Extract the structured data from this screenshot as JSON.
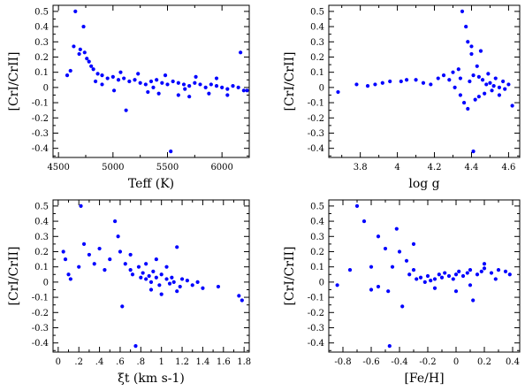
{
  "figure": {
    "point_color": "#0000ff",
    "axis_color": "#000000",
    "background": "#ffffff"
  },
  "chart_data": [
    {
      "type": "scatter",
      "panel": "top-left",
      "xlabel": "Teff (K)",
      "ylabel": "[CrI/CrII]",
      "xlim": [
        4450,
        6250
      ],
      "ylim": [
        -0.46,
        0.54
      ],
      "xticks": [
        4500,
        5000,
        5500,
        6000
      ],
      "xtick_labels": [
        "4500",
        "5000",
        "5500",
        "6000"
      ],
      "yticks": [
        -0.4,
        -0.3,
        -0.2,
        -0.1,
        0,
        0.1,
        0.2,
        0.3,
        0.4,
        0.5
      ],
      "ytick_labels": [
        "-0.4",
        "-0.3",
        "-0.2",
        "-0.1",
        "0",
        "0.1",
        "0.2",
        "0.3",
        "0.4",
        "0.5"
      ],
      "points": [
        [
          4655,
          0.5
        ],
        [
          4730,
          0.4
        ],
        [
          4640,
          0.27
        ],
        [
          4700,
          0.25
        ],
        [
          4690,
          0.22
        ],
        [
          4740,
          0.23
        ],
        [
          4760,
          0.19
        ],
        [
          4780,
          0.17
        ],
        [
          4800,
          0.14
        ],
        [
          4820,
          0.12
        ],
        [
          4580,
          0.08
        ],
        [
          4610,
          0.11
        ],
        [
          4860,
          0.09
        ],
        [
          4900,
          0.08
        ],
        [
          4950,
          0.06
        ],
        [
          5000,
          0.07
        ],
        [
          5050,
          0.05
        ],
        [
          5100,
          0.06
        ],
        [
          5150,
          0.04
        ],
        [
          5200,
          0.05
        ],
        [
          5250,
          0.03
        ],
        [
          5300,
          0.02
        ],
        [
          5350,
          0.04
        ],
        [
          5400,
          0.05
        ],
        [
          5450,
          0.03
        ],
        [
          5500,
          0.02
        ],
        [
          5550,
          0.04
        ],
        [
          5600,
          0.03
        ],
        [
          5650,
          0.02
        ],
        [
          5700,
          0.01
        ],
        [
          5750,
          0.03
        ],
        [
          5800,
          0.02
        ],
        [
          5850,
          0.0
        ],
        [
          5900,
          0.02
        ],
        [
          5950,
          0.01
        ],
        [
          6000,
          0.0
        ],
        [
          6050,
          -0.01
        ],
        [
          6100,
          0.01
        ],
        [
          6150,
          0.0
        ],
        [
          6200,
          -0.02
        ],
        [
          6170,
          0.23
        ],
        [
          5120,
          -0.15
        ],
        [
          5530,
          -0.42
        ],
        [
          4900,
          0.02
        ],
        [
          5010,
          -0.02
        ],
        [
          5320,
          -0.03
        ],
        [
          5420,
          -0.04
        ],
        [
          5600,
          -0.05
        ],
        [
          5700,
          -0.06
        ],
        [
          5880,
          -0.04
        ],
        [
          6050,
          -0.05
        ],
        [
          6230,
          -0.02
        ],
        [
          5230,
          0.09
        ],
        [
          5480,
          0.08
        ],
        [
          5760,
          0.07
        ],
        [
          5950,
          0.06
        ],
        [
          4840,
          0.04
        ],
        [
          5070,
          0.1
        ],
        [
          5370,
          0.0
        ],
        [
          5660,
          -0.01
        ]
      ]
    },
    {
      "type": "scatter",
      "panel": "top-right",
      "xlabel": "log g",
      "ylabel": "[CrI/CrII]",
      "xlim": [
        3.63,
        4.66
      ],
      "ylim": [
        -0.46,
        0.54
      ],
      "xticks": [
        3.8,
        4.0,
        4.2,
        4.4,
        4.6
      ],
      "xtick_labels": [
        "3.8",
        "4",
        "4.2",
        "4.4",
        "4.6"
      ],
      "yticks": [
        -0.4,
        -0.3,
        -0.2,
        -0.1,
        0,
        0.1,
        0.2,
        0.3,
        0.4,
        0.5
      ],
      "ytick_labels": [
        "-0.4",
        "-0.3",
        "-0.2",
        "-0.1",
        "0",
        "0.1",
        "0.2",
        "0.3",
        "0.4",
        "0.5"
      ],
      "points": [
        [
          3.68,
          -0.03
        ],
        [
          3.78,
          0.02
        ],
        [
          3.84,
          0.01
        ],
        [
          3.88,
          0.02
        ],
        [
          3.92,
          0.03
        ],
        [
          3.96,
          0.04
        ],
        [
          4.02,
          0.04
        ],
        [
          4.05,
          0.05
        ],
        [
          4.1,
          0.05
        ],
        [
          4.14,
          0.03
        ],
        [
          4.18,
          0.02
        ],
        [
          4.22,
          0.06
        ],
        [
          4.25,
          0.08
        ],
        [
          4.28,
          0.05
        ],
        [
          4.3,
          0.1
        ],
        [
          4.33,
          0.12
        ],
        [
          4.35,
          0.5
        ],
        [
          4.37,
          0.4
        ],
        [
          4.38,
          0.3
        ],
        [
          4.4,
          0.27
        ],
        [
          4.4,
          0.22
        ],
        [
          4.41,
          0.08
        ],
        [
          4.43,
          0.14
        ],
        [
          4.45,
          0.24
        ],
        [
          4.46,
          0.05
        ],
        [
          4.48,
          0.02
        ],
        [
          4.5,
          0.03
        ],
        [
          4.52,
          0.01
        ],
        [
          4.55,
          0.0
        ],
        [
          4.58,
          -0.01
        ],
        [
          4.62,
          -0.12
        ],
        [
          4.34,
          -0.05
        ],
        [
          4.36,
          -0.1
        ],
        [
          4.38,
          -0.14
        ],
        [
          4.42,
          -0.08
        ],
        [
          4.44,
          -0.06
        ],
        [
          4.47,
          -0.04
        ],
        [
          4.51,
          -0.02
        ],
        [
          4.55,
          -0.05
        ],
        [
          4.41,
          -0.42
        ],
        [
          4.34,
          0.06
        ],
        [
          4.39,
          0.04
        ],
        [
          4.44,
          0.07
        ],
        [
          4.49,
          0.09
        ],
        [
          4.53,
          0.06
        ],
        [
          4.57,
          0.04
        ],
        [
          4.6,
          0.02
        ],
        [
          4.31,
          0.0
        ]
      ]
    },
    {
      "type": "scatter",
      "panel": "bottom-left",
      "xlabel": "ξt (km s-1)",
      "ylabel": "[CrI/CrII]",
      "xlim": [
        -0.05,
        1.85
      ],
      "ylim": [
        -0.46,
        0.54
      ],
      "xticks": [
        0,
        0.2,
        0.4,
        0.6,
        0.8,
        1.0,
        1.2,
        1.4,
        1.6,
        1.8
      ],
      "xtick_labels": [
        "0",
        ".2",
        ".4",
        ".6",
        ".8",
        "1",
        "1.2",
        "1.4",
        "1.6",
        "1.8"
      ],
      "yticks": [
        -0.4,
        -0.3,
        -0.2,
        -0.1,
        0,
        0.1,
        0.2,
        0.3,
        0.4,
        0.5
      ],
      "ytick_labels": [
        "-0.4",
        "-0.3",
        "-0.2",
        "-0.1",
        "0",
        "0.1",
        "0.2",
        "0.3",
        "0.4",
        "0.5"
      ],
      "points": [
        [
          0.05,
          0.2
        ],
        [
          0.07,
          0.15
        ],
        [
          0.1,
          0.05
        ],
        [
          0.12,
          0.02
        ],
        [
          0.2,
          0.1
        ],
        [
          0.22,
          0.5
        ],
        [
          0.25,
          0.25
        ],
        [
          0.3,
          0.18
        ],
        [
          0.35,
          0.12
        ],
        [
          0.4,
          0.22
        ],
        [
          0.45,
          0.08
        ],
        [
          0.5,
          0.15
        ],
        [
          0.55,
          0.4
        ],
        [
          0.58,
          0.3
        ],
        [
          0.6,
          0.2
        ],
        [
          0.62,
          -0.16
        ],
        [
          0.65,
          0.12
        ],
        [
          0.7,
          0.08
        ],
        [
          0.72,
          0.05
        ],
        [
          0.75,
          -0.42
        ],
        [
          0.78,
          0.1
        ],
        [
          0.8,
          0.03
        ],
        [
          0.82,
          0.06
        ],
        [
          0.85,
          0.02
        ],
        [
          0.88,
          0.04
        ],
        [
          0.9,
          0.0
        ],
        [
          0.92,
          0.07
        ],
        [
          0.95,
          0.03
        ],
        [
          0.98,
          -0.02
        ],
        [
          1.0,
          0.05
        ],
        [
          1.05,
          0.02
        ],
        [
          1.08,
          -0.01
        ],
        [
          1.1,
          0.03
        ],
        [
          1.12,
          0.0
        ],
        [
          1.15,
          0.23
        ],
        [
          1.18,
          -0.03
        ],
        [
          1.2,
          0.02
        ],
        [
          1.25,
          0.01
        ],
        [
          1.3,
          -0.02
        ],
        [
          1.35,
          0.0
        ],
        [
          1.4,
          -0.04
        ],
        [
          1.55,
          -0.03
        ],
        [
          1.75,
          -0.09
        ],
        [
          1.78,
          -0.12
        ],
        [
          0.85,
          0.12
        ],
        [
          0.95,
          0.15
        ],
        [
          1.05,
          0.1
        ],
        [
          0.7,
          0.18
        ],
        [
          0.9,
          -0.05
        ],
        [
          1.0,
          -0.08
        ],
        [
          1.15,
          -0.06
        ]
      ]
    },
    {
      "type": "scatter",
      "panel": "bottom-right",
      "xlabel": "[Fe/H]",
      "ylabel": "[CrI/CrII]",
      "xlim": [
        -0.9,
        0.45
      ],
      "ylim": [
        -0.46,
        0.54
      ],
      "xticks": [
        -0.8,
        -0.6,
        -0.4,
        -0.2,
        0,
        0.2,
        0.4
      ],
      "xtick_labels": [
        "-0.8",
        "-0.6",
        "-0.4",
        "-0.2",
        "0",
        "0.2",
        "0.4"
      ],
      "yticks": [
        -0.4,
        -0.3,
        -0.2,
        -0.1,
        0,
        0.1,
        0.2,
        0.3,
        0.4,
        0.5
      ],
      "ytick_labels": [
        "-0.4",
        "-0.3",
        "-0.2",
        "-0.1",
        "0",
        "0.1",
        "0.2",
        "0.3",
        "0.4",
        "0.5"
      ],
      "points": [
        [
          -0.84,
          -0.02
        ],
        [
          -0.75,
          0.08
        ],
        [
          -0.7,
          0.5
        ],
        [
          -0.65,
          0.4
        ],
        [
          -0.6,
          -0.05
        ],
        [
          -0.55,
          0.3
        ],
        [
          -0.5,
          0.22
        ],
        [
          -0.48,
          -0.06
        ],
        [
          -0.45,
          0.1
        ],
        [
          -0.42,
          0.35
        ],
        [
          -0.4,
          0.2
        ],
        [
          -0.38,
          -0.16
        ],
        [
          -0.35,
          0.14
        ],
        [
          -0.33,
          0.05
        ],
        [
          -0.3,
          0.25
        ],
        [
          -0.28,
          0.02
        ],
        [
          -0.25,
          0.03
        ],
        [
          -0.22,
          0.0
        ],
        [
          -0.2,
          0.04
        ],
        [
          -0.18,
          0.01
        ],
        [
          -0.15,
          0.02
        ],
        [
          -0.12,
          0.05
        ],
        [
          -0.1,
          0.03
        ],
        [
          -0.08,
          0.06
        ],
        [
          -0.05,
          0.04
        ],
        [
          -0.02,
          0.02
        ],
        [
          0.0,
          0.05
        ],
        [
          0.02,
          0.07
        ],
        [
          0.05,
          0.04
        ],
        [
          0.08,
          0.06
        ],
        [
          0.1,
          0.08
        ],
        [
          0.12,
          -0.12
        ],
        [
          0.15,
          0.05
        ],
        [
          0.18,
          0.07
        ],
        [
          0.2,
          0.09
        ],
        [
          0.25,
          0.06
        ],
        [
          0.3,
          0.08
        ],
        [
          0.35,
          0.07
        ],
        [
          0.38,
          0.05
        ],
        [
          -0.47,
          -0.42
        ],
        [
          -0.6,
          0.1
        ],
        [
          -0.55,
          -0.03
        ],
        [
          -0.15,
          -0.04
        ],
        [
          0.0,
          -0.06
        ],
        [
          0.1,
          -0.02
        ],
        [
          0.2,
          0.12
        ],
        [
          -0.3,
          0.08
        ],
        [
          0.28,
          0.02
        ]
      ]
    }
  ]
}
